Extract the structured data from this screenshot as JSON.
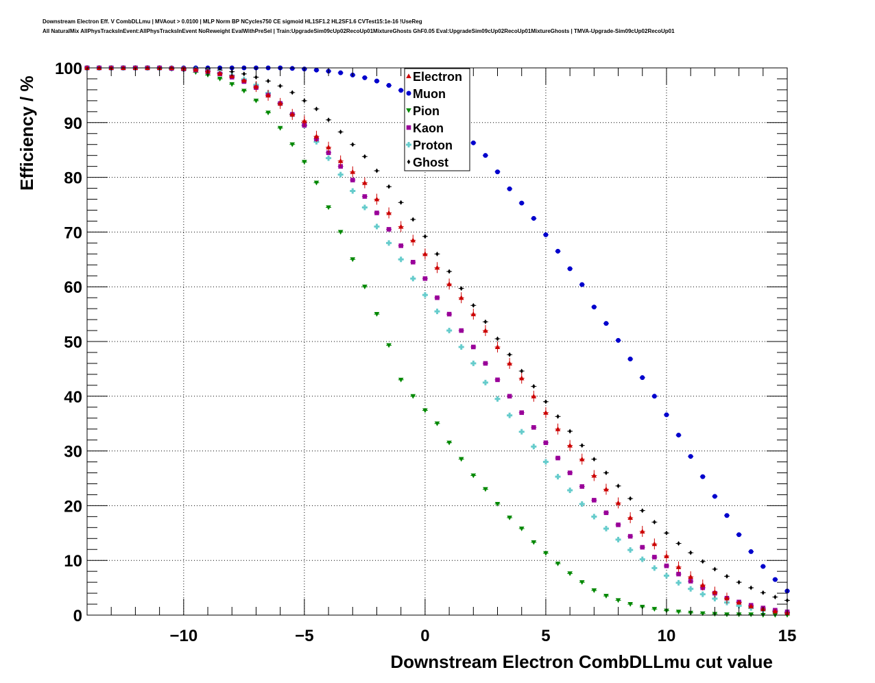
{
  "header": {
    "title_line1": "Downstream Electron Eff. V CombDLLmu | MVAout > 0.0100 | MLP Norm BP NCycles750 CE sigmoid HL1SF1.2 HL2SF1.6 CVTest15:1e-16 !UseReg",
    "title_line2": "All NaturalMix AllPhysTracksInEvent:AllPhysTracksInEvent NoReweight EvalWithPreSel | Train:UpgradeSim09cUp02RecoUp01MixtureGhosts GhF0.05 Eval:UpgradeSim09cUp02RecoUp01MixtureGhosts | TMVA-Upgrade-Sim09cUp02RecoUp01"
  },
  "chart_data": {
    "type": "scatter",
    "xlabel": "Downstream Electron CombDLLmu cut value",
    "ylabel": "Efficiency / %",
    "xlim": [
      -14,
      15
    ],
    "ylim": [
      0,
      100
    ],
    "xticks": [
      -10,
      -5,
      0,
      5,
      10,
      15
    ],
    "xtick_labels": [
      "−10",
      "−5",
      "0",
      "5",
      "10",
      "15"
    ],
    "yticks": [
      0,
      10,
      20,
      30,
      40,
      50,
      60,
      70,
      80,
      90,
      100
    ],
    "ytick_labels": [
      "0",
      "10",
      "20",
      "30",
      "40",
      "50",
      "60",
      "70",
      "80",
      "90",
      "100"
    ],
    "grid": true,
    "legend_position": "top-center",
    "x": [
      -14.0,
      -13.5,
      -13.0,
      -12.5,
      -12.0,
      -11.5,
      -11.0,
      -10.5,
      -10.0,
      -9.5,
      -9.0,
      -8.5,
      -8.0,
      -7.5,
      -7.0,
      -6.5,
      -6.0,
      -5.5,
      -5.0,
      -4.5,
      -4.0,
      -3.5,
      -3.0,
      -2.5,
      -2.0,
      -1.5,
      -1.0,
      -0.5,
      0.0,
      0.5,
      1.0,
      1.5,
      2.0,
      2.5,
      3.0,
      3.5,
      4.0,
      4.5,
      5.0,
      5.5,
      6.0,
      6.5,
      7.0,
      7.5,
      8.0,
      8.5,
      9.0,
      9.5,
      10.0,
      10.5,
      11.0,
      11.5,
      12.0,
      12.5,
      13.0,
      13.5,
      14.0,
      14.5,
      15.0
    ],
    "series": [
      {
        "name": "Electron",
        "color": "#cc0000",
        "marker": "triangle-up",
        "values": [
          100.0,
          100.0,
          100.0,
          100.0,
          100.0,
          100.0,
          100.0,
          100.0,
          99.9,
          99.7,
          99.4,
          99.0,
          98.5,
          97.7,
          96.6,
          95.0,
          93.5,
          91.5,
          90.3,
          87.5,
          85.5,
          83.0,
          81.0,
          79.0,
          76.0,
          73.5,
          71.0,
          68.5,
          66.0,
          63.5,
          60.5,
          58.0,
          55.0,
          52.0,
          49.0,
          46.0,
          43.3,
          40.0,
          37.0,
          34.0,
          31.0,
          28.5,
          25.5,
          23.0,
          20.5,
          17.8,
          15.3,
          13.0,
          10.8,
          8.8,
          7.0,
          5.5,
          4.2,
          3.1,
          2.3,
          1.6,
          1.1,
          0.7,
          0.4
        ]
      },
      {
        "name": "Muon",
        "color": "#0000cc",
        "marker": "circle",
        "values": [
          100.0,
          100.0,
          100.0,
          100.0,
          100.0,
          100.0,
          100.0,
          100.0,
          100.0,
          100.0,
          100.0,
          100.0,
          100.0,
          100.0,
          100.0,
          100.0,
          100.0,
          99.9,
          99.8,
          99.6,
          99.4,
          99.1,
          98.7,
          98.2,
          97.6,
          96.8,
          95.9,
          94.8,
          93.5,
          92.0,
          90.3,
          88.4,
          86.3,
          84.0,
          81.0,
          77.9,
          75.3,
          72.5,
          69.5,
          66.5,
          63.3,
          60.4,
          56.3,
          53.3,
          50.2,
          46.8,
          43.4,
          40.0,
          36.6,
          32.9,
          29.0,
          25.3,
          21.7,
          18.2,
          14.7,
          11.6,
          8.9,
          6.5,
          4.4
        ]
      },
      {
        "name": "Pion",
        "color": "#008800",
        "marker": "triangle-down",
        "values": [
          100.0,
          100.0,
          100.0,
          100.0,
          100.0,
          100.0,
          99.9,
          99.8,
          99.6,
          99.2,
          98.7,
          98.0,
          97.0,
          95.8,
          94.0,
          91.8,
          89.0,
          86.0,
          82.8,
          79.0,
          74.5,
          70.0,
          65.0,
          60.0,
          55.0,
          49.3,
          43.0,
          40.0,
          37.4,
          35.0,
          31.5,
          28.5,
          25.5,
          23.0,
          20.3,
          17.8,
          15.8,
          13.3,
          11.3,
          9.4,
          7.6,
          6.0,
          4.5,
          3.5,
          2.7,
          2.0,
          1.5,
          1.1,
          0.8,
          0.6,
          0.4,
          0.3,
          0.2,
          0.1,
          0.1,
          0.1,
          0.0,
          0.0,
          0.0
        ]
      },
      {
        "name": "Kaon",
        "color": "#990099",
        "marker": "square",
        "values": [
          100.0,
          100.0,
          100.0,
          100.0,
          100.0,
          100.0,
          100.0,
          99.9,
          99.8,
          99.6,
          99.3,
          98.9,
          98.3,
          97.5,
          96.4,
          95.0,
          93.5,
          91.5,
          89.5,
          87.0,
          84.5,
          82.0,
          79.5,
          76.5,
          73.5,
          70.5,
          67.5,
          64.5,
          61.5,
          58.0,
          55.0,
          52.0,
          49.0,
          46.0,
          43.0,
          40.0,
          37.0,
          34.3,
          31.5,
          28.7,
          26.0,
          23.5,
          21.0,
          18.7,
          16.5,
          14.4,
          12.4,
          10.6,
          9.0,
          7.5,
          6.2,
          5.0,
          4.0,
          3.1,
          2.4,
          1.8,
          1.3,
          0.9,
          0.6
        ]
      },
      {
        "name": "Proton",
        "color": "#66cccc",
        "marker": "plus",
        "values": [
          100.0,
          100.0,
          100.0,
          100.0,
          100.0,
          100.0,
          100.0,
          99.9,
          99.8,
          99.7,
          99.5,
          99.1,
          98.6,
          97.9,
          96.9,
          95.4,
          93.5,
          91.5,
          89.5,
          86.5,
          83.5,
          80.5,
          77.5,
          74.5,
          71.0,
          68.0,
          65.0,
          61.5,
          58.5,
          55.5,
          52.0,
          49.0,
          46.0,
          42.5,
          39.5,
          36.5,
          33.5,
          30.8,
          28.0,
          25.3,
          22.8,
          20.3,
          18.0,
          15.8,
          13.8,
          11.9,
          10.2,
          8.6,
          7.2,
          5.9,
          4.8,
          3.8,
          3.0,
          2.3,
          1.7,
          1.3,
          0.9,
          0.6,
          0.4
        ]
      },
      {
        "name": "Ghost",
        "color": "#000000",
        "marker": "diamond",
        "values": [
          100.0,
          100.0,
          100.0,
          100.0,
          100.0,
          100.0,
          100.0,
          100.0,
          100.0,
          99.9,
          99.8,
          99.6,
          99.3,
          98.9,
          98.3,
          97.6,
          96.7,
          95.5,
          94.0,
          92.5,
          90.5,
          88.3,
          86.0,
          83.8,
          81.2,
          78.3,
          75.4,
          72.3,
          69.2,
          66.0,
          62.8,
          59.7,
          56.6,
          53.6,
          50.5,
          47.6,
          44.6,
          41.8,
          39.0,
          36.3,
          33.6,
          31.0,
          28.5,
          26.0,
          23.6,
          21.3,
          19.1,
          17.0,
          15.0,
          13.1,
          11.4,
          9.8,
          8.4,
          7.1,
          6.0,
          5.0,
          4.1,
          3.3,
          2.7
        ]
      }
    ]
  }
}
